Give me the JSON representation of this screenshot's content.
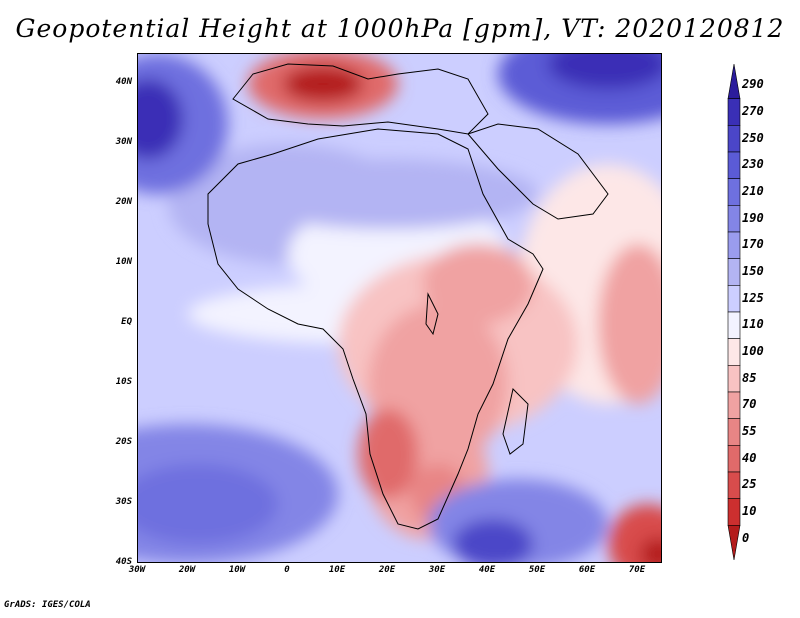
{
  "title": "Geopotential Height at 1000hPa [gpm], VT: 2020120812",
  "footer": "GrADS: IGES/COLA",
  "map": {
    "lon_range": [
      -30,
      75
    ],
    "lat_range": [
      -40,
      45
    ],
    "lat_ticks": [
      {
        "value": 40,
        "label": "40N"
      },
      {
        "value": 30,
        "label": "30N"
      },
      {
        "value": 20,
        "label": "20N"
      },
      {
        "value": 10,
        "label": "10N"
      },
      {
        "value": 0,
        "label": "EQ"
      },
      {
        "value": -10,
        "label": "10S"
      },
      {
        "value": -20,
        "label": "20S"
      },
      {
        "value": -30,
        "label": "30S"
      },
      {
        "value": -40,
        "label": "40S"
      }
    ],
    "lon_ticks": [
      {
        "value": -30,
        "label": "30W"
      },
      {
        "value": -20,
        "label": "20W"
      },
      {
        "value": -10,
        "label": "10W"
      },
      {
        "value": 0,
        "label": "0"
      },
      {
        "value": 10,
        "label": "10E"
      },
      {
        "value": 20,
        "label": "20E"
      },
      {
        "value": 30,
        "label": "30E"
      },
      {
        "value": 40,
        "label": "40E"
      },
      {
        "value": 50,
        "label": "50E"
      },
      {
        "value": 60,
        "label": "60E"
      },
      {
        "value": 70,
        "label": "70E"
      }
    ],
    "border_color": "#000000"
  },
  "colorbar": {
    "labels": [
      "290",
      "270",
      "250",
      "230",
      "210",
      "190",
      "170",
      "150",
      "125",
      "110",
      "100",
      "85",
      "70",
      "55",
      "40",
      "25",
      "10",
      "0"
    ],
    "colors": [
      "#2b1c9c",
      "#3a2fb6",
      "#4b46c8",
      "#5b5bd6",
      "#6e70df",
      "#8385e6",
      "#9a9cee",
      "#b3b4f3",
      "#ccceff",
      "#f3f3ff",
      "#fde7e7",
      "#f8c3c3",
      "#f0a2a2",
      "#e88585",
      "#e06a6a",
      "#d84c4c",
      "#cc2f2f",
      "#b41c1c"
    ]
  }
}
